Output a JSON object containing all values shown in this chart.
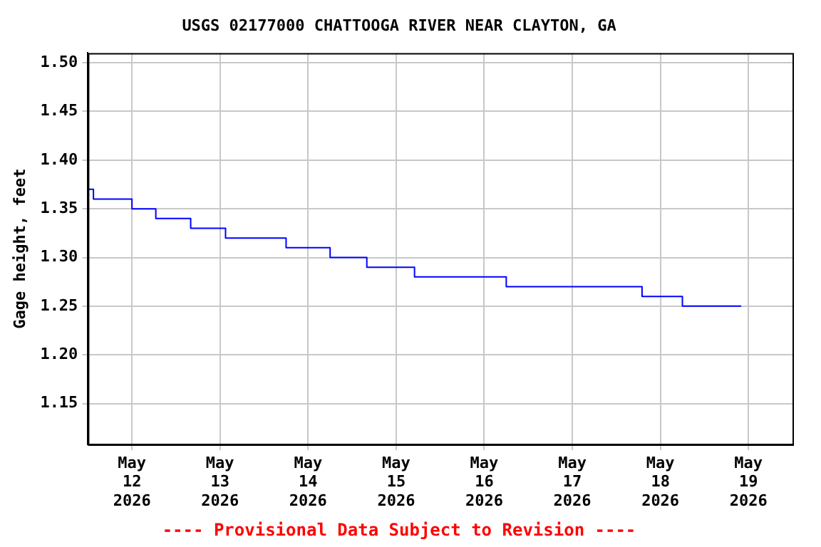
{
  "chart_data": {
    "type": "step",
    "title": "USGS 02177000 CHATTOOGA RIVER NEAR CLAYTON, GA",
    "ylabel": "Gage height, feet",
    "annotations": [
      "---- Provisional Data Subject to Revision ----"
    ],
    "series": [
      {
        "color": "#0000ff",
        "x": [
          "2026-05-11T12:00",
          "2026-05-11T13:30",
          "2026-05-12T00:00",
          "2026-05-12T06:30",
          "2026-05-12T16:00",
          "2026-05-13T01:30",
          "2026-05-13T18:00",
          "2026-05-14T06:00",
          "2026-05-14T16:00",
          "2026-05-15T05:00",
          "2026-05-16T06:00",
          "2026-05-17T19:00",
          "2026-05-18T06:00",
          "2026-05-18T22:00"
        ],
        "values": [
          1.37,
          1.36,
          1.35,
          1.34,
          1.33,
          1.32,
          1.31,
          1.3,
          1.29,
          1.28,
          1.27,
          1.26,
          1.25,
          1.25
        ]
      }
    ],
    "xlim": [
      "2026-05-11T12:00",
      "2026-05-19T12:00"
    ],
    "xticks": [
      {
        "value": "2026-05-12",
        "label": "May\n12\n2026"
      },
      {
        "value": "2026-05-13",
        "label": "May\n13\n2026"
      },
      {
        "value": "2026-05-14",
        "label": "May\n14\n2026"
      },
      {
        "value": "2026-05-15",
        "label": "May\n15\n2026"
      },
      {
        "value": "2026-05-16",
        "label": "May\n16\n2026"
      },
      {
        "value": "2026-05-17",
        "label": "May\n17\n2026"
      },
      {
        "value": "2026-05-18",
        "label": "May\n18\n2026"
      },
      {
        "value": "2026-05-19",
        "label": "May\n19\n2026"
      }
    ],
    "ylim": [
      1.108,
      1.51
    ],
    "yticks": [
      {
        "value": 1.15,
        "label": "1.15"
      },
      {
        "value": 1.2,
        "label": "1.20"
      },
      {
        "value": 1.25,
        "label": "1.25"
      },
      {
        "value": 1.3,
        "label": "1.30"
      },
      {
        "value": 1.35,
        "label": "1.35"
      },
      {
        "value": 1.4,
        "label": "1.40"
      },
      {
        "value": 1.45,
        "label": "1.45"
      },
      {
        "value": 1.5,
        "label": "1.50"
      }
    ],
    "grid": true,
    "legend": false,
    "marker": "none",
    "line_style": "solid"
  }
}
